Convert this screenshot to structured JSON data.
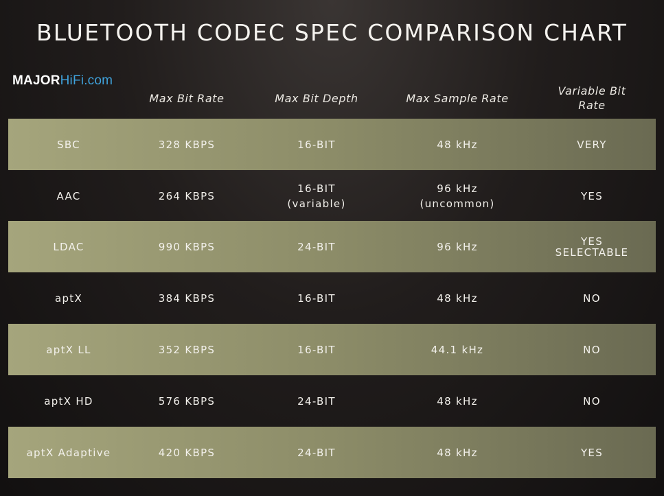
{
  "title": "BLUETOOTH CODEC SPEC COMPARISON CHART",
  "logo": {
    "major": "MAJOR",
    "hifi": "HiFi.com"
  },
  "chart_data": {
    "type": "table",
    "title": "BLUETOOTH CODEC SPEC COMPARISON CHART",
    "columns": [
      "Max Bit Rate",
      "Max Bit Depth",
      "Max Sample Rate",
      "Variable Bit Rate"
    ],
    "rows": [
      {
        "codec": "SBC",
        "bitrate": "328 KBPS",
        "bitdepth": "16-BIT",
        "bitdepth_note": "",
        "samplerate": "48 kHz",
        "samplerate_note": "",
        "variable": "VERY",
        "variable_note": ""
      },
      {
        "codec": "AAC",
        "bitrate": "264 KBPS",
        "bitdepth": "16-BIT",
        "bitdepth_note": "(variable)",
        "samplerate": "96 kHz",
        "samplerate_note": "(uncommon)",
        "variable": "YES",
        "variable_note": ""
      },
      {
        "codec": "LDAC",
        "bitrate": "990 KBPS",
        "bitdepth": "24-BIT",
        "bitdepth_note": "",
        "samplerate": "96 kHz",
        "samplerate_note": "",
        "variable": "YES",
        "variable_note": "SELECTABLE"
      },
      {
        "codec": "aptX",
        "bitrate": "384 KBPS",
        "bitdepth": "16-BIT",
        "bitdepth_note": "",
        "samplerate": "48 kHz",
        "samplerate_note": "",
        "variable": "NO",
        "variable_note": ""
      },
      {
        "codec": "aptX LL",
        "bitrate": "352 KBPS",
        "bitdepth": "16-BIT",
        "bitdepth_note": "",
        "samplerate": "44.1 kHz",
        "samplerate_note": "",
        "variable": "NO",
        "variable_note": ""
      },
      {
        "codec": "aptX HD",
        "bitrate": "576 KBPS",
        "bitdepth": "24-BIT",
        "bitdepth_note": "",
        "samplerate": "48 kHz",
        "samplerate_note": "",
        "variable": "NO",
        "variable_note": ""
      },
      {
        "codec": "aptX Adaptive",
        "bitrate": "420 KBPS",
        "bitdepth": "24-BIT",
        "bitdepth_note": "",
        "samplerate": "48 kHz",
        "samplerate_note": "",
        "variable": "YES",
        "variable_note": ""
      }
    ]
  },
  "colors": {
    "band": "#8c8c68",
    "background": "#1e1a19",
    "logo_accent": "#3fa2dc"
  }
}
